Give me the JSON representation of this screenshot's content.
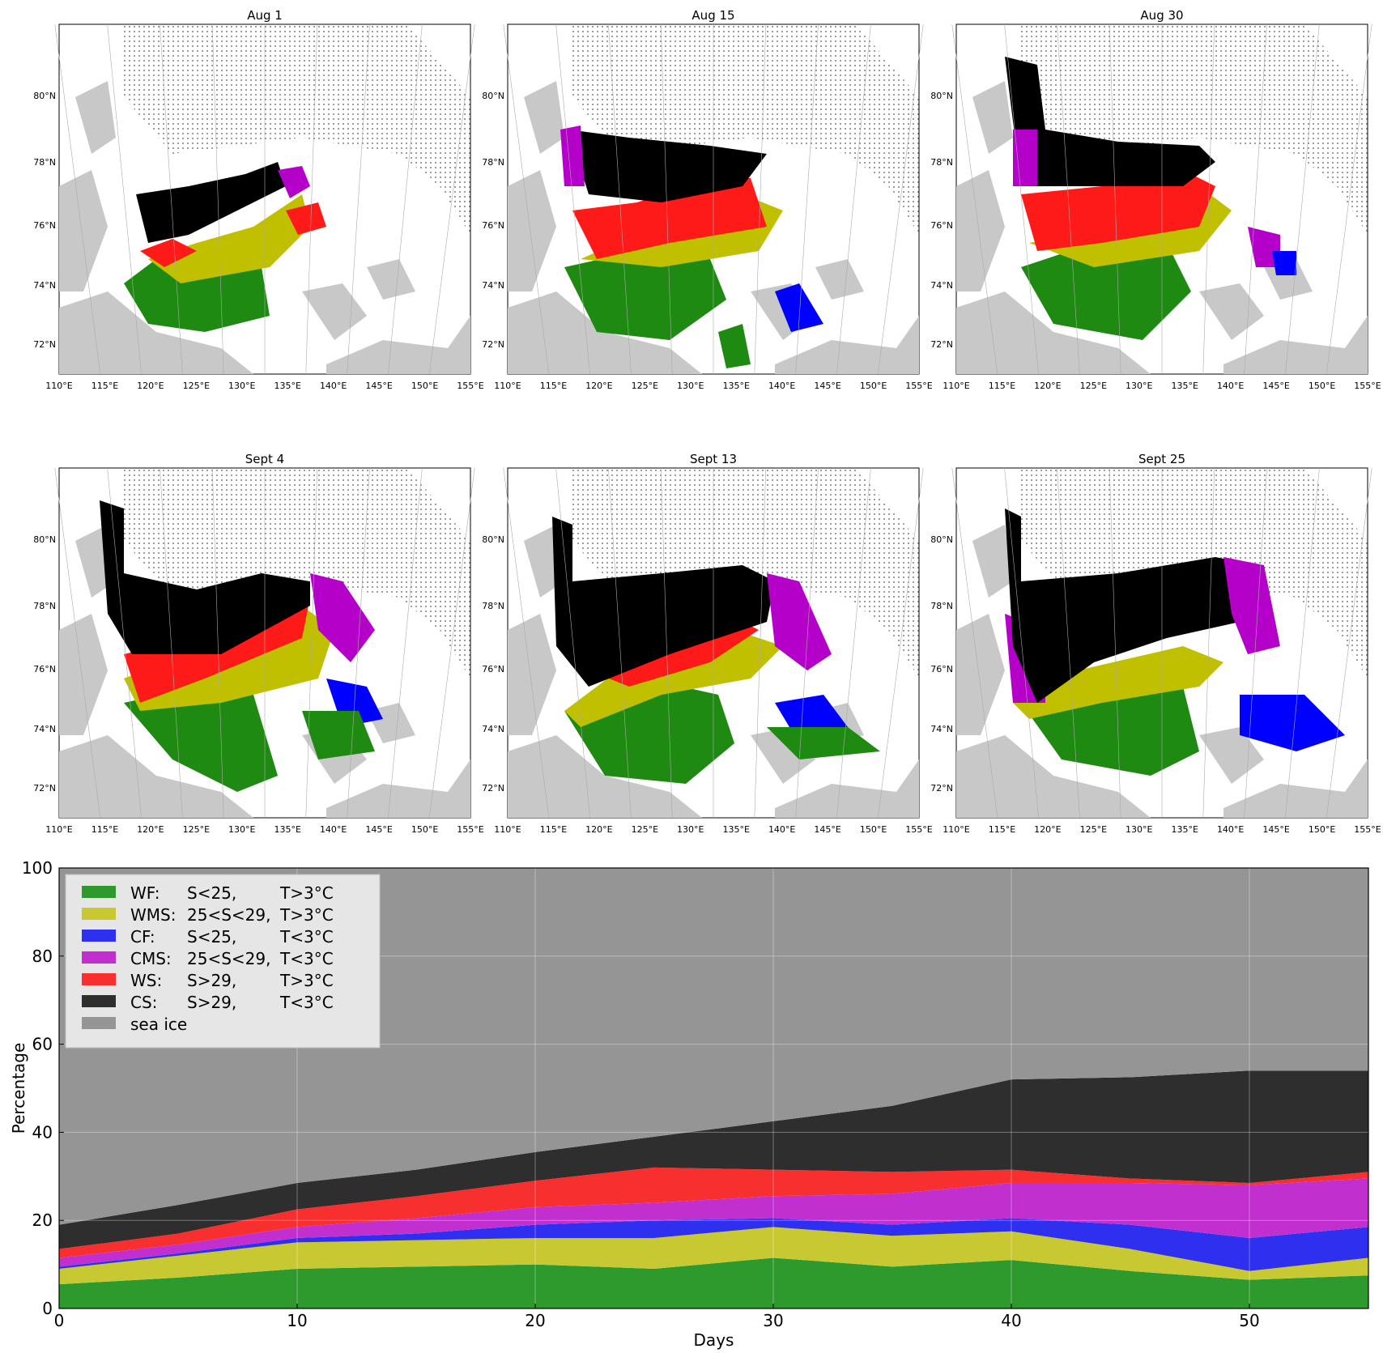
{
  "colors": {
    "WF": "#2e9a2e",
    "WMS": "#c8c832",
    "CF": "#2f2ff0",
    "CMS": "#c22fcf",
    "WS": "#f72f2f",
    "CS": "#2e2e2e",
    "sea_ice": "#959595",
    "land": "#c8c8c8",
    "open_water_blank": "#ffffff",
    "map_black": "#000000",
    "map_green": "#1f8a12",
    "map_yellow": "#c0c000",
    "map_red": "#ff1a1a",
    "map_magenta": "#b400c8",
    "map_blue": "#0000ff"
  },
  "maps": {
    "panels": [
      {
        "title": "Aug 1"
      },
      {
        "title": "Aug 15"
      },
      {
        "title": "Aug 30"
      },
      {
        "title": "Sept 4"
      },
      {
        "title": "Sept 13"
      },
      {
        "title": "Sept 25"
      }
    ],
    "lat_labels": [
      "80°N",
      "78°N",
      "76°N",
      "74°N",
      "72°N"
    ],
    "lon_labels": [
      "110°E",
      "115°E",
      "120°E",
      "125°E",
      "130°E",
      "135°E",
      "140°E",
      "145°E",
      "150°E",
      "155°E"
    ]
  },
  "chart_data": {
    "type": "area",
    "stacked": true,
    "xlabel": "Days",
    "ylabel": "Percentage",
    "xlim": [
      0,
      55
    ],
    "ylim": [
      0,
      100
    ],
    "xticks": [
      0,
      10,
      20,
      30,
      40,
      50
    ],
    "yticks": [
      0,
      20,
      40,
      60,
      80,
      100
    ],
    "grid": true,
    "legend_position": "top-left",
    "x": [
      0,
      5,
      10,
      15,
      20,
      25,
      30,
      35,
      40,
      45,
      50,
      55
    ],
    "series": [
      {
        "name": "WF:",
        "label_S": "S<25,",
        "label_T": "T>3°C",
        "key": "WF",
        "values": [
          5.5,
          7,
          9,
          9.5,
          10,
          9,
          11.5,
          9.5,
          11,
          8.5,
          6.5,
          7.5
        ]
      },
      {
        "name": "WMS:",
        "label_S": "25<S<29,",
        "label_T": "T>3°C",
        "key": "WMS",
        "values": [
          3.5,
          5,
          6,
          6,
          6,
          7,
          7,
          7,
          6.5,
          5,
          2,
          4
        ]
      },
      {
        "name": "CF:",
        "label_S": "S<25,",
        "label_T": "T<3°C",
        "key": "CF",
        "values": [
          0.5,
          0.5,
          1,
          1.5,
          3,
          4,
          2,
          2.5,
          3,
          5.5,
          7.5,
          7
        ]
      },
      {
        "name": "CMS:",
        "label_S": "25<S<29,",
        "label_T": "T<3°C",
        "key": "CMS",
        "values": [
          2,
          2,
          2.5,
          3.5,
          4,
          4,
          5,
          7,
          8,
          9.5,
          12,
          11
        ]
      },
      {
        "name": "WS:",
        "label_S": "S>29,",
        "label_T": "T>3°C",
        "key": "WS",
        "values": [
          2,
          2.5,
          4,
          5,
          6,
          8,
          6,
          5,
          3,
          1,
          0.5,
          1.5
        ]
      },
      {
        "name": "CS:",
        "label_S": "S>29,",
        "label_T": "T<3°C",
        "key": "CS",
        "values": [
          5.5,
          6.5,
          6,
          6,
          6.5,
          7,
          11,
          15,
          20.5,
          23,
          25.5,
          23
        ]
      },
      {
        "name": "sea ice",
        "label_S": "",
        "label_T": "",
        "key": "sea_ice",
        "values": [
          81,
          76.5,
          71.5,
          68.5,
          64.5,
          61,
          57.5,
          54,
          48,
          47.5,
          46,
          46
        ]
      }
    ]
  }
}
